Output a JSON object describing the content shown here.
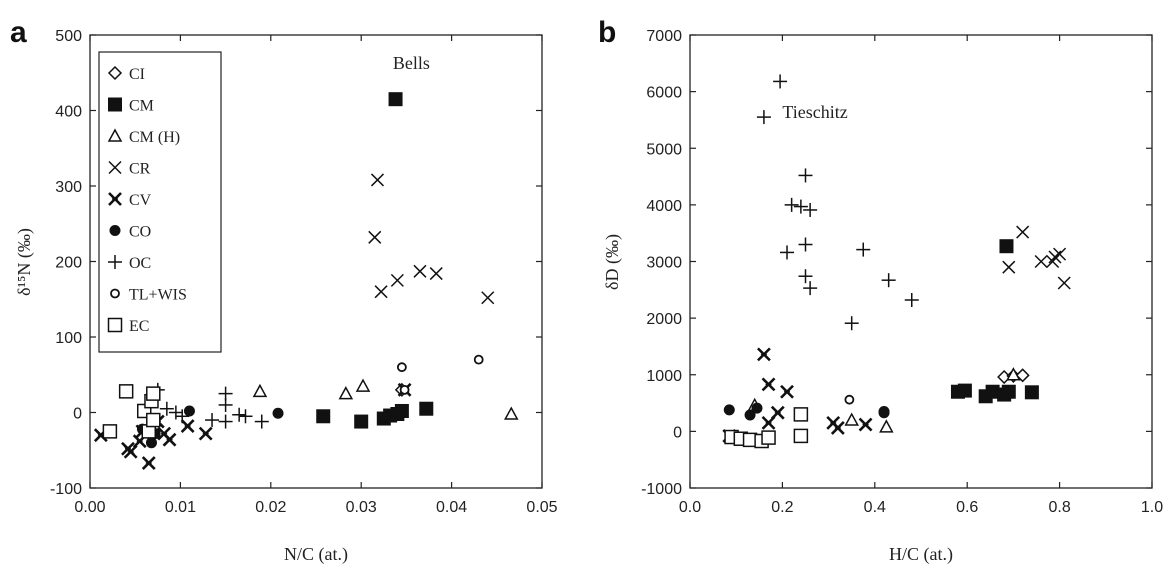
{
  "chart_data": [
    {
      "type": "scatter",
      "panel_label": "a",
      "xlabel": "N/C (at.)",
      "ylabel": "δ¹⁵N (‰)",
      "xlim": [
        0,
        0.05
      ],
      "ylim": [
        -100,
        500
      ],
      "xticks": [
        "0.00",
        "0.01",
        "0.02",
        "0.03",
        "0.04",
        "0.05"
      ],
      "yticks": [
        "-100",
        "0",
        "100",
        "200",
        "300",
        "400",
        "500"
      ],
      "legend_position": "top-left",
      "annotations": [
        {
          "text": "Bells",
          "x": 0.0335,
          "y": 455
        }
      ],
      "series": [
        {
          "name": "CI",
          "marker": "diamond",
          "points": [
            [
              0.0345,
              30
            ]
          ]
        },
        {
          "name": "CM",
          "marker": "square-filled",
          "points": [
            [
              0.0338,
              415
            ],
            [
              0.0258,
              -5
            ],
            [
              0.03,
              -12
            ],
            [
              0.0325,
              -8
            ],
            [
              0.0332,
              -4
            ],
            [
              0.034,
              -2
            ],
            [
              0.0345,
              2
            ],
            [
              0.0372,
              5
            ]
          ]
        },
        {
          "name": "CM (H)",
          "marker": "triangle",
          "points": [
            [
              0.0188,
              28
            ],
            [
              0.0283,
              25
            ],
            [
              0.0302,
              35
            ],
            [
              0.0466,
              -2
            ]
          ]
        },
        {
          "name": "CR",
          "marker": "x",
          "points": [
            [
              0.0318,
              308
            ],
            [
              0.0315,
              232
            ],
            [
              0.0322,
              160
            ],
            [
              0.034,
              175
            ],
            [
              0.0365,
              187
            ],
            [
              0.0383,
              184
            ],
            [
              0.044,
              152
            ]
          ]
        },
        {
          "name": "CV",
          "marker": "star-x",
          "points": [
            [
              0.0012,
              -30
            ],
            [
              0.0042,
              -48
            ],
            [
              0.0045,
              -52
            ],
            [
              0.0055,
              -38
            ],
            [
              0.0065,
              -67
            ],
            [
              0.0058,
              -25
            ],
            [
              0.0075,
              -12
            ],
            [
              0.0082,
              -28
            ],
            [
              0.0088,
              -36
            ],
            [
              0.0108,
              -18
            ],
            [
              0.0128,
              -28
            ],
            [
              0.0348,
              30
            ]
          ]
        },
        {
          "name": "CO",
          "marker": "circle-filled",
          "points": [
            [
              0.0058,
              -22
            ],
            [
              0.0065,
              -25
            ],
            [
              0.0068,
              -40
            ],
            [
              0.0072,
              -28
            ],
            [
              0.011,
              2
            ],
            [
              0.0208,
              -1
            ]
          ]
        },
        {
          "name": "OC",
          "marker": "plus",
          "points": [
            [
              0.0075,
              30
            ],
            [
              0.0085,
              5
            ],
            [
              0.0095,
              0
            ],
            [
              0.0102,
              -5
            ],
            [
              0.0135,
              -10
            ],
            [
              0.015,
              25
            ],
            [
              0.015,
              -12
            ],
            [
              0.0165,
              -3
            ],
            [
              0.0172,
              -5
            ],
            [
              0.019,
              -12
            ],
            [
              0.015,
              10
            ]
          ]
        },
        {
          "name": "TL+WIS",
          "marker": "circle-small",
          "points": [
            [
              0.0345,
              60
            ],
            [
              0.0348,
              30
            ],
            [
              0.043,
              70
            ]
          ]
        },
        {
          "name": "EC",
          "marker": "square-open",
          "points": [
            [
              0.0022,
              -25
            ],
            [
              0.004,
              28
            ],
            [
              0.006,
              2
            ],
            [
              0.0068,
              15
            ],
            [
              0.007,
              25
            ],
            [
              0.0065,
              -25
            ],
            [
              0.007,
              -10
            ]
          ]
        }
      ]
    },
    {
      "type": "scatter",
      "panel_label": "b",
      "xlabel": "H/C (at.)",
      "ylabel": "δD (‰)",
      "xlim": [
        0,
        1.0
      ],
      "ylim": [
        -1000,
        7000
      ],
      "xticks": [
        "0.0",
        "0.2",
        "0.4",
        "0.6",
        "0.8",
        "1.0"
      ],
      "yticks": [
        "-1000",
        "0",
        "1000",
        "2000",
        "3000",
        "4000",
        "5000",
        "6000",
        "7000"
      ],
      "annotations": [
        {
          "text": "Tieschitz",
          "x": 0.2,
          "y": 5530
        }
      ],
      "series": [
        {
          "name": "CI",
          "marker": "diamond",
          "points": [
            [
              0.68,
              960
            ],
            [
              0.7,
              980
            ],
            [
              0.72,
              990
            ]
          ]
        },
        {
          "name": "CM",
          "marker": "square-filled",
          "points": [
            [
              0.685,
              3270
            ],
            [
              0.58,
              700
            ],
            [
              0.595,
              720
            ],
            [
              0.64,
              620
            ],
            [
              0.655,
              700
            ],
            [
              0.68,
              650
            ],
            [
              0.69,
              700
            ],
            [
              0.74,
              690
            ]
          ]
        },
        {
          "name": "CM (H)",
          "marker": "triangle",
          "points": [
            [
              0.14,
              460
            ],
            [
              0.35,
              200
            ],
            [
              0.425,
              80
            ],
            [
              0.7,
              1000
            ]
          ]
        },
        {
          "name": "CR",
          "marker": "x",
          "points": [
            [
              0.72,
              3520
            ],
            [
              0.69,
              2900
            ],
            [
              0.76,
              3000
            ],
            [
              0.785,
              3000
            ],
            [
              0.79,
              3080
            ],
            [
              0.8,
              3130
            ],
            [
              0.81,
              2620
            ]
          ]
        },
        {
          "name": "CV",
          "marker": "star-x",
          "points": [
            [
              0.16,
              1360
            ],
            [
              0.17,
              830
            ],
            [
              0.21,
              700
            ],
            [
              0.17,
              150
            ],
            [
              0.19,
              330
            ],
            [
              0.31,
              150
            ],
            [
              0.32,
              60
            ],
            [
              0.38,
              120
            ],
            [
              0.085,
              -80
            ]
          ]
        },
        {
          "name": "CO",
          "marker": "circle-filled",
          "points": [
            [
              0.085,
              380
            ],
            [
              0.13,
              290
            ],
            [
              0.145,
              410
            ],
            [
              0.42,
              330
            ],
            [
              0.42,
              350
            ]
          ]
        },
        {
          "name": "OC",
          "marker": "plus",
          "points": [
            [
              0.195,
              6180
            ],
            [
              0.16,
              5550
            ],
            [
              0.25,
              4520
            ],
            [
              0.22,
              4000
            ],
            [
              0.24,
              3970
            ],
            [
              0.26,
              3910
            ],
            [
              0.25,
              3300
            ],
            [
              0.21,
              3160
            ],
            [
              0.375,
              3210
            ],
            [
              0.25,
              2740
            ],
            [
              0.26,
              2530
            ],
            [
              0.43,
              2670
            ],
            [
              0.48,
              2320
            ],
            [
              0.35,
              1910
            ]
          ]
        },
        {
          "name": "TL+WIS",
          "marker": "circle-small",
          "points": [
            [
              0.345,
              560
            ]
          ]
        },
        {
          "name": "EC",
          "marker": "square-open",
          "points": [
            [
              0.09,
              -100
            ],
            [
              0.11,
              -130
            ],
            [
              0.13,
              -150
            ],
            [
              0.155,
              -170
            ],
            [
              0.17,
              -110
            ],
            [
              0.24,
              300
            ],
            [
              0.24,
              -80
            ]
          ]
        }
      ]
    }
  ]
}
